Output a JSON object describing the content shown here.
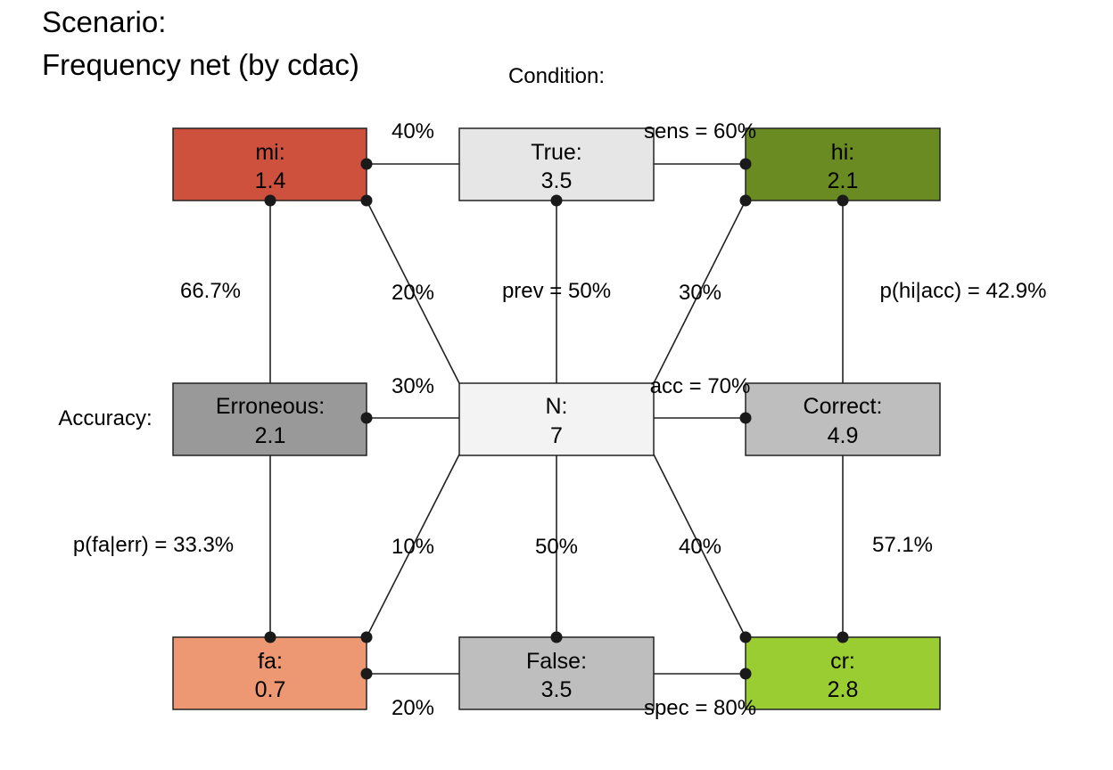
{
  "title": {
    "line1": "Scenario:",
    "line2": "Frequency net (by cdac)"
  },
  "dimension_labels": {
    "condition": "Condition:",
    "accuracy": "Accuracy:"
  },
  "colors": {
    "mi": "#cd513c",
    "hi": "#6a8b22",
    "fa": "#ee9773",
    "cr": "#9acd32",
    "true": "#e6e6e6",
    "false": "#bebebe",
    "n": "#f3f3f3",
    "erroneous": "#999999",
    "correct": "#bebebe",
    "line": "#222222"
  },
  "nodes": {
    "mi": {
      "label": "mi:",
      "value": "1.4"
    },
    "true": {
      "label": "True:",
      "value": "3.5"
    },
    "hi": {
      "label": "hi:",
      "value": "2.1"
    },
    "erroneous": {
      "label": "Erroneous:",
      "value": "2.1"
    },
    "n": {
      "label": "N:",
      "value": "7"
    },
    "correct": {
      "label": "Correct:",
      "value": "4.9"
    },
    "fa": {
      "label": "fa:",
      "value": "0.7"
    },
    "false": {
      "label": "False:",
      "value": "3.5"
    },
    "cr": {
      "label": "cr:",
      "value": "2.8"
    }
  },
  "edge_labels": {
    "mi_true": "40%",
    "true_hi": "sens = 60%",
    "mi_erroneous": "66.7%",
    "mi_n": "20%",
    "true_n": "prev = 50%",
    "hi_n": "30%",
    "hi_correct": "p(hi|acc) = 42.9%",
    "erroneous_n": "30%",
    "n_correct": "acc = 70%",
    "erroneous_fa": "p(fa|err) = 33.3%",
    "n_fa": "10%",
    "n_false": "50%",
    "n_cr": "40%",
    "correct_cr": "57.1%",
    "fa_false": "20%",
    "false_cr": "spec = 80%"
  }
}
